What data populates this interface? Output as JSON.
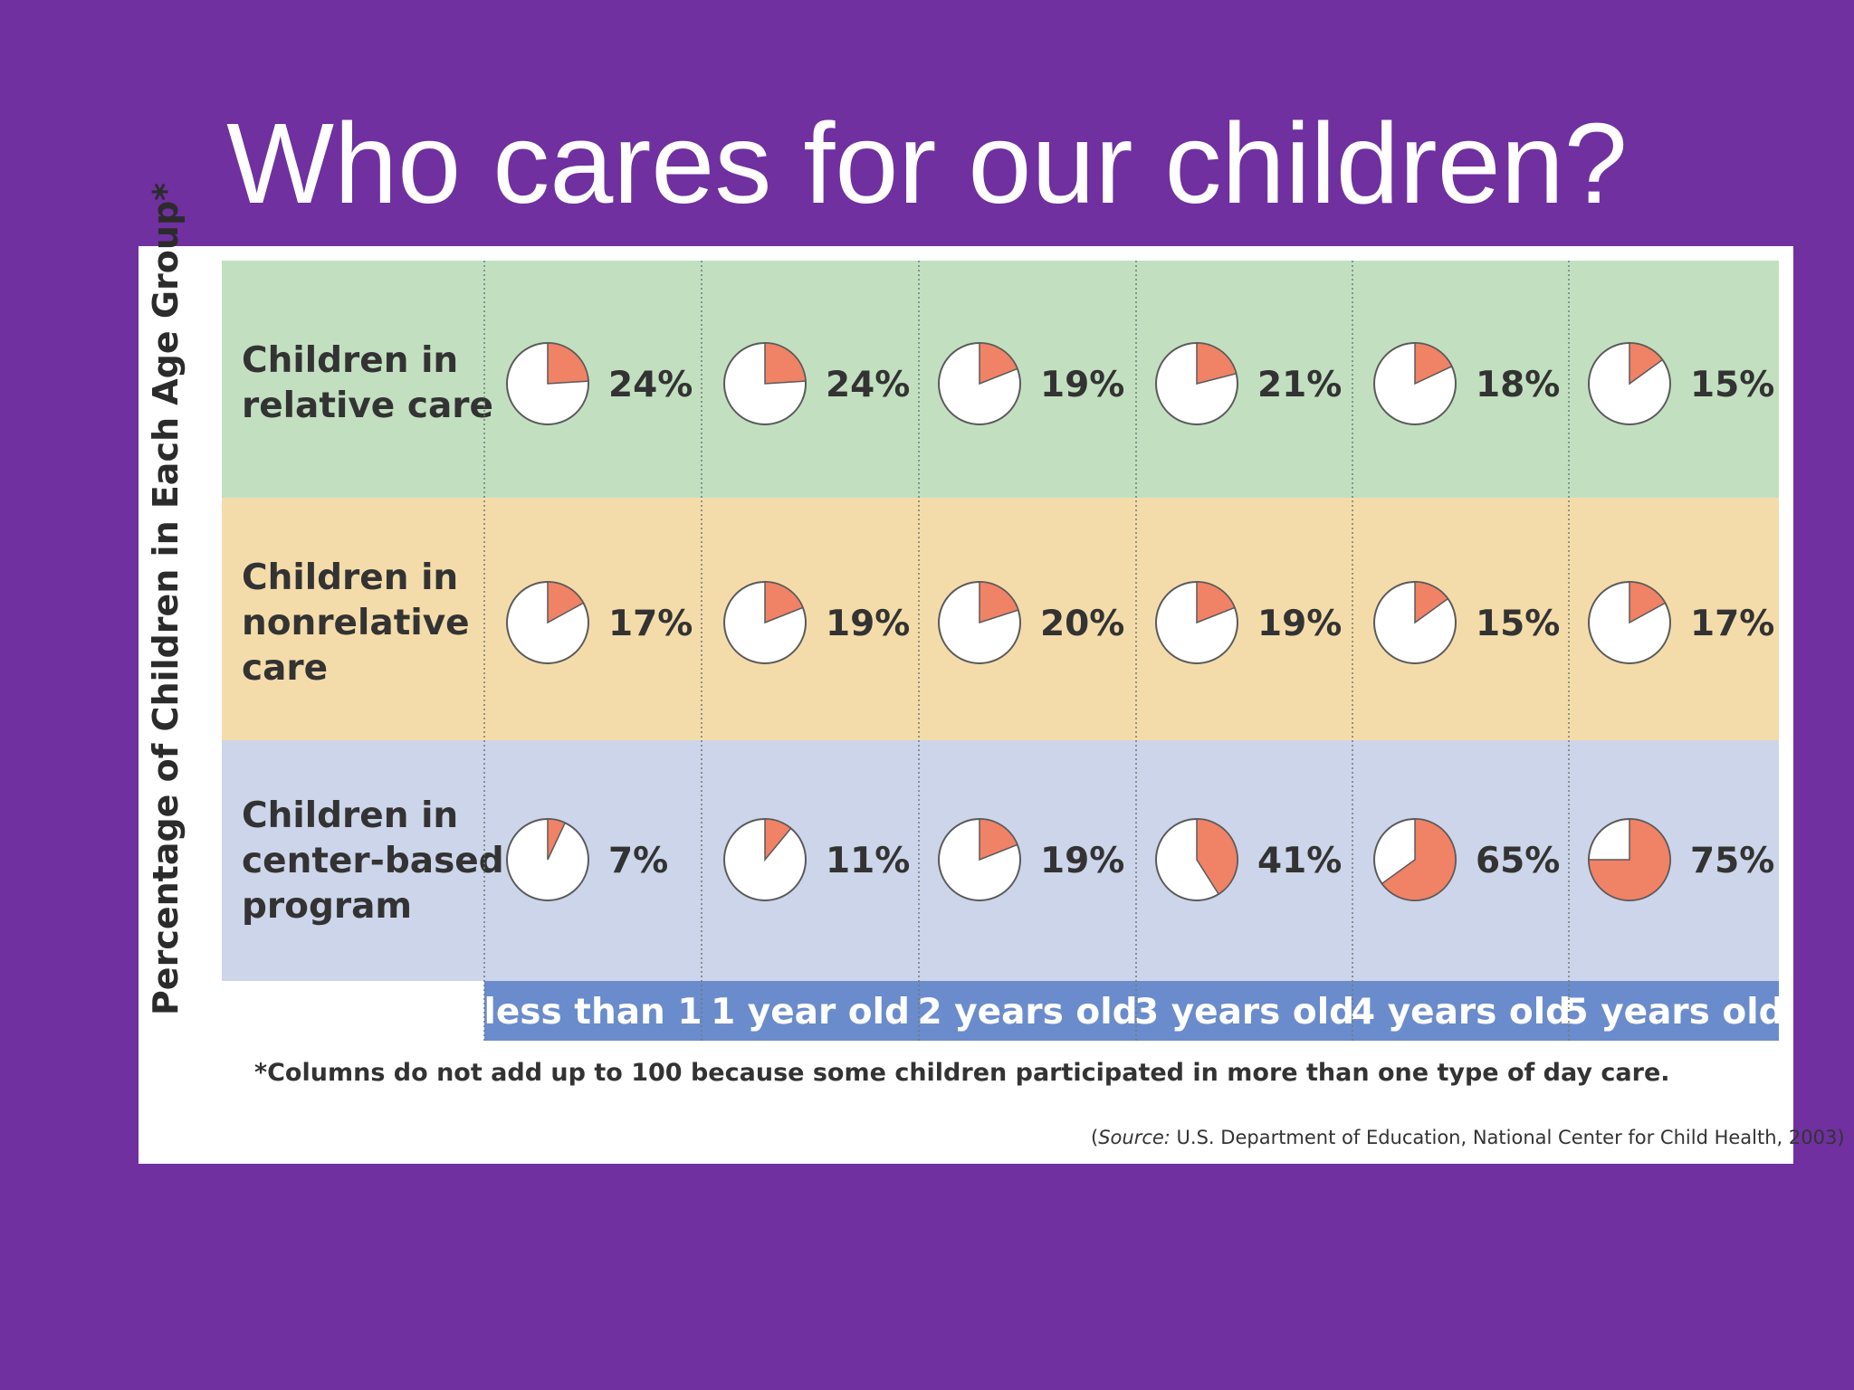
{
  "slide": {
    "title": "Who cares for our children?"
  },
  "chart_data": {
    "type": "pie",
    "ylabel": "Percentage of Children in Each Age Group*",
    "categories": [
      "less than 1",
      "1 year old",
      "2 years old",
      "3 years old",
      "4 years old",
      "5 years old"
    ],
    "series": [
      {
        "name": "Children in relative care",
        "label_lines": [
          "Children in",
          "relative care"
        ],
        "values": [
          24,
          24,
          19,
          21,
          18,
          15
        ]
      },
      {
        "name": "Children in nonrelative care",
        "label_lines": [
          "Children in",
          "nonrelative",
          "care"
        ],
        "values": [
          17,
          19,
          20,
          19,
          15,
          17
        ]
      },
      {
        "name": "Children in center-based program",
        "label_lines": [
          "Children in",
          "center-based",
          "program"
        ],
        "values": [
          7,
          11,
          19,
          41,
          65,
          75
        ]
      }
    ],
    "value_suffix": "%",
    "footnote": "*Columns do not add up to 100 because some children participated in more than one type of day care.",
    "source": {
      "prefix": "(",
      "label": "Source:",
      "text": " U.S. Department of Education, National Center for Child Health, 2003)"
    }
  },
  "colors": {
    "background": "#7030a0",
    "panel": "#ffffff",
    "rows": [
      "#c2e0c0",
      "#f4dcaa",
      "#cdd5ea"
    ],
    "header_bar": "#6a8ccc",
    "header_text": "#ffffff",
    "slice": "#f08266",
    "pie_fill": "#ffffff",
    "pie_stroke": "#5a5a5a",
    "text": "#333333"
  }
}
